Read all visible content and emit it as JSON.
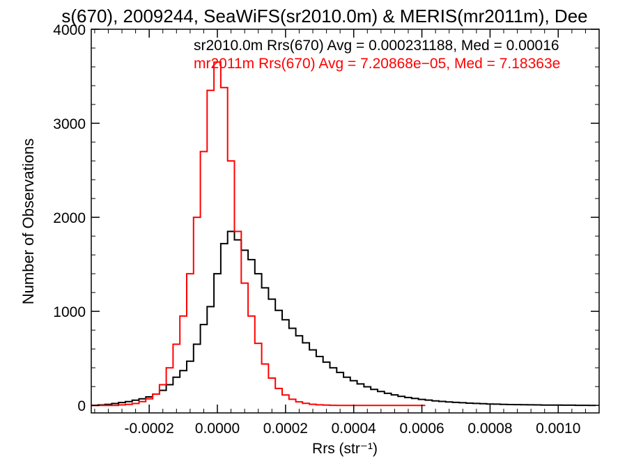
{
  "chart_data": {
    "type": "histogram",
    "title": "s(670), 2009244, SeaWiFS(sr2010.0m) & MERIS(mr2011m), Dee",
    "xlabel": "Rrs (str⁻¹)",
    "ylabel": "Number of Observations",
    "xlim": [
      -0.00037,
      0.00112
    ],
    "ylim": [
      -80,
      4000
    ],
    "xticks": [
      -0.0002,
      0.0,
      0.0002,
      0.0004,
      0.0006,
      0.0008,
      0.001
    ],
    "xtick_labels": [
      "-0.0002",
      "0.0000",
      "0.0002",
      "0.0004",
      "0.0006",
      "0.0008",
      "0.0010"
    ],
    "yticks": [
      0,
      1000,
      2000,
      3000,
      4000
    ],
    "ytick_labels": [
      "0",
      "1000",
      "2000",
      "3000",
      "4000"
    ],
    "grid": false,
    "legend_position": "top",
    "colors": {
      "sr": "#000000",
      "mr": "#ff0000",
      "axes": "#000000"
    },
    "series": [
      {
        "name": "sr2010.0m",
        "legend": "sr2010.0m Rrs(670) Avg = 0.000231188, Med = 0.00016",
        "color": "#000000",
        "x": [
          -0.00036,
          -0.00034,
          -0.00032,
          -0.0003,
          -0.00028,
          -0.00026,
          -0.00024,
          -0.00022,
          -0.0002,
          -0.00018,
          -0.00016,
          -0.00014,
          -0.00012,
          -0.0001,
          -8e-05,
          -6e-05,
          -4e-05,
          -2e-05,
          0.0,
          2e-05,
          4e-05,
          6e-05,
          8e-05,
          0.0001,
          0.00012,
          0.00014,
          0.00016,
          0.00018,
          0.0002,
          0.00022,
          0.00024,
          0.00026,
          0.00028,
          0.0003,
          0.00032,
          0.00034,
          0.00036,
          0.00038,
          0.0004,
          0.00042,
          0.00044,
          0.00046,
          0.00048,
          0.0005,
          0.00052,
          0.00054,
          0.00056,
          0.00058,
          0.0006,
          0.00062,
          0.00064,
          0.00066,
          0.00068,
          0.0007,
          0.00072,
          0.00074,
          0.00076,
          0.00078,
          0.0008,
          0.00082,
          0.00084,
          0.00086,
          0.00088,
          0.0009,
          0.00092,
          0.00094,
          0.00096,
          0.00098,
          0.001,
          0.00102,
          0.00104,
          0.00106,
          0.00108,
          0.0011
        ],
        "values": [
          0,
          5,
          10,
          20,
          30,
          40,
          55,
          70,
          90,
          120,
          160,
          220,
          300,
          370,
          470,
          650,
          860,
          1050,
          1400,
          1720,
          1850,
          1760,
          1650,
          1550,
          1400,
          1250,
          1130,
          1010,
          910,
          820,
          740,
          665,
          590,
          520,
          460,
          400,
          350,
          300,
          262,
          228,
          198,
          170,
          148,
          128,
          112,
          96,
          84,
          74,
          64,
          56,
          48,
          42,
          37,
          32,
          28,
          24,
          21,
          18,
          15,
          13,
          11,
          9,
          8,
          7,
          6,
          5,
          4,
          3,
          3,
          2,
          2,
          1,
          1,
          0
        ]
      },
      {
        "name": "mr2011m",
        "legend": "mr2011m Rrs(670) Avg = 7.20868e−05, Med = 7.18363e",
        "color": "#ff0000",
        "x": [
          -0.00036,
          -0.00034,
          -0.00032,
          -0.0003,
          -0.00028,
          -0.00026,
          -0.00024,
          -0.00022,
          -0.0002,
          -0.00018,
          -0.00016,
          -0.00014,
          -0.00012,
          -0.0001,
          -8e-05,
          -6e-05,
          -4e-05,
          -2e-05,
          0.0,
          2e-05,
          4e-05,
          6e-05,
          8e-05,
          0.0001,
          0.00012,
          0.00014,
          0.00016,
          0.00018,
          0.0002,
          0.00022,
          0.00024,
          0.00026,
          0.00028,
          0.0003,
          0.00032,
          0.00034,
          0.00036,
          0.00038,
          0.0004,
          0.00042,
          0.00044,
          0.00046,
          0.00048,
          0.0005,
          0.00052,
          0.00054,
          0.00056,
          0.00058,
          0.0006
        ],
        "values": [
          0,
          0,
          0,
          0,
          5,
          10,
          20,
          40,
          70,
          120,
          220,
          400,
          650,
          950,
          1400,
          2000,
          2700,
          3350,
          3650,
          3380,
          2600,
          1850,
          1300,
          950,
          660,
          440,
          290,
          180,
          110,
          65,
          38,
          22,
          12,
          6,
          3,
          1,
          0,
          0,
          0,
          0,
          0,
          0,
          0,
          0,
          0,
          0,
          0,
          0,
          0
        ]
      }
    ]
  }
}
